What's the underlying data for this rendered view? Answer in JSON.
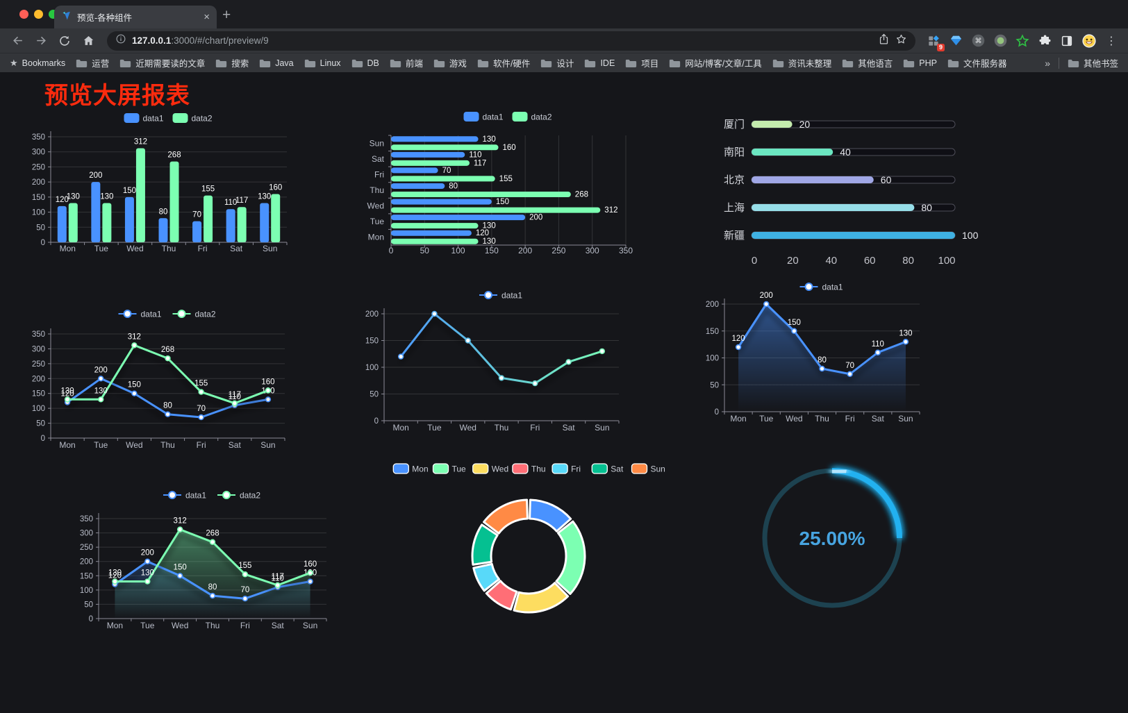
{
  "browser": {
    "tab": {
      "title": "预览-各种组件",
      "close": "×",
      "new_tab": "+"
    },
    "address": {
      "host": "127.0.0.1",
      "rest": ":3000/#/chart/preview/9"
    },
    "extensions_badge": "9",
    "bookmarks_bar": {
      "star_label": "Bookmarks",
      "folders": [
        "运营",
        "近期需要读的文章",
        "搜索",
        "Java",
        "Linux",
        "DB",
        "前端",
        "游戏",
        "软件/硬件",
        "设计",
        "IDE",
        "项目",
        "网站/博客/文章/工具",
        "资讯未整理",
        "其他语言",
        "PHP",
        "文件服务器"
      ],
      "overflow": "»",
      "other": "其他书签"
    }
  },
  "page": {
    "title": "预览大屏报表"
  },
  "chart_data": [
    {
      "id": "grouped-bar-vertical",
      "type": "bar",
      "legend_position": "top",
      "grid": true,
      "value_labels": true,
      "categories": [
        "Mon",
        "Tue",
        "Wed",
        "Thu",
        "Fri",
        "Sat",
        "Sun"
      ],
      "series": [
        {
          "name": "data1",
          "color": "#4992ff",
          "values": [
            120,
            200,
            150,
            80,
            70,
            110,
            130
          ]
        },
        {
          "name": "data2",
          "color": "#7cffb2",
          "values": [
            130,
            130,
            312,
            268,
            155,
            117,
            160
          ]
        }
      ],
      "ylim": [
        0,
        350
      ],
      "ytick": 50
    },
    {
      "id": "grouped-bar-horizontal",
      "type": "bar-horizontal",
      "legend_position": "top",
      "grid": true,
      "value_labels": true,
      "categories": [
        "Mon",
        "Tue",
        "Wed",
        "Thu",
        "Fri",
        "Sat",
        "Sun"
      ],
      "series": [
        {
          "name": "data1",
          "color": "#4992ff",
          "values": [
            120,
            200,
            150,
            80,
            70,
            110,
            130
          ]
        },
        {
          "name": "data2",
          "color": "#7cffb2",
          "values": [
            130,
            130,
            312,
            268,
            155,
            117,
            160
          ]
        }
      ],
      "xlim": [
        0,
        350
      ],
      "xtick": 50
    },
    {
      "id": "capsule-progress-bars",
      "type": "capsule-progress",
      "value_labels": true,
      "items": [
        {
          "label": "厦门",
          "value": 20,
          "color": "#c4ebad"
        },
        {
          "label": "南阳",
          "value": 40,
          "color": "#6be6c1"
        },
        {
          "label": "北京",
          "value": 60,
          "color": "#a0a7e6"
        },
        {
          "label": "上海",
          "value": 80,
          "color": "#96dee8"
        },
        {
          "label": "新疆",
          "value": 100,
          "color": "#3fb1e3"
        }
      ],
      "xlim": [
        0,
        100
      ],
      "xtick": 20
    },
    {
      "id": "line-two-series",
      "type": "line",
      "legend_position": "top",
      "grid": true,
      "value_labels": true,
      "categories": [
        "Mon",
        "Tue",
        "Wed",
        "Thu",
        "Fri",
        "Sat",
        "Sun"
      ],
      "series": [
        {
          "name": "data1",
          "color": "#4992ff",
          "values": [
            120,
            200,
            150,
            80,
            70,
            110,
            130
          ]
        },
        {
          "name": "data2",
          "color": "#7cffb2",
          "values": [
            130,
            130,
            312,
            268,
            155,
            117,
            160
          ]
        }
      ],
      "ylim": [
        0,
        350
      ],
      "ytick": 50
    },
    {
      "id": "line-gradient-single",
      "type": "line",
      "legend_position": "top",
      "grid": true,
      "value_labels": false,
      "gradient_line": true,
      "categories": [
        "Mon",
        "Tue",
        "Wed",
        "Thu",
        "Fri",
        "Sat",
        "Sun"
      ],
      "series": [
        {
          "name": "data1",
          "color": "#4992ff",
          "color_end": "#7cffb2",
          "values": [
            120,
            200,
            150,
            80,
            70,
            110,
            130
          ]
        }
      ],
      "ylim": [
        0,
        200
      ],
      "ytick": 50
    },
    {
      "id": "area-single",
      "type": "area",
      "legend_position": "top",
      "grid": true,
      "value_labels": true,
      "categories": [
        "Mon",
        "Tue",
        "Wed",
        "Thu",
        "Fri",
        "Sat",
        "Sun"
      ],
      "series": [
        {
          "name": "data1",
          "color": "#4992ff",
          "values": [
            120,
            200,
            150,
            80,
            70,
            110,
            130
          ]
        }
      ],
      "ylim": [
        0,
        200
      ],
      "ytick": 50
    },
    {
      "id": "area-two-series",
      "type": "area",
      "legend_position": "top",
      "grid": true,
      "value_labels": true,
      "categories": [
        "Mon",
        "Tue",
        "Wed",
        "Thu",
        "Fri",
        "Sat",
        "Sun"
      ],
      "series": [
        {
          "name": "data1",
          "color": "#4992ff",
          "values": [
            120,
            200,
            150,
            80,
            70,
            110,
            130
          ]
        },
        {
          "name": "data2",
          "color": "#7cffb2",
          "values": [
            130,
            130,
            312,
            268,
            155,
            117,
            160
          ]
        }
      ],
      "ylim": [
        0,
        350
      ],
      "ytick": 50
    },
    {
      "id": "donut-week",
      "type": "pie",
      "legend_position": "top",
      "inner_radius_ratio": 0.67,
      "items": [
        {
          "label": "Mon",
          "value": 120,
          "color": "#4992ff"
        },
        {
          "label": "Tue",
          "value": 200,
          "color": "#7cffb2"
        },
        {
          "label": "Wed",
          "value": 150,
          "color": "#fddd60"
        },
        {
          "label": "Thu",
          "value": 80,
          "color": "#ff6e76"
        },
        {
          "label": "Fri",
          "value": 70,
          "color": "#58d9f9"
        },
        {
          "label": "Sat",
          "value": 110,
          "color": "#05c091"
        },
        {
          "label": "Sun",
          "value": 130,
          "color": "#ff8a45"
        }
      ]
    },
    {
      "id": "gauge-percent",
      "type": "gauge",
      "value": 25,
      "max": 100,
      "label": "25.00%",
      "color": "#22b1f0",
      "track_color": "#1d4250",
      "text_color": "#47a4e0"
    }
  ]
}
